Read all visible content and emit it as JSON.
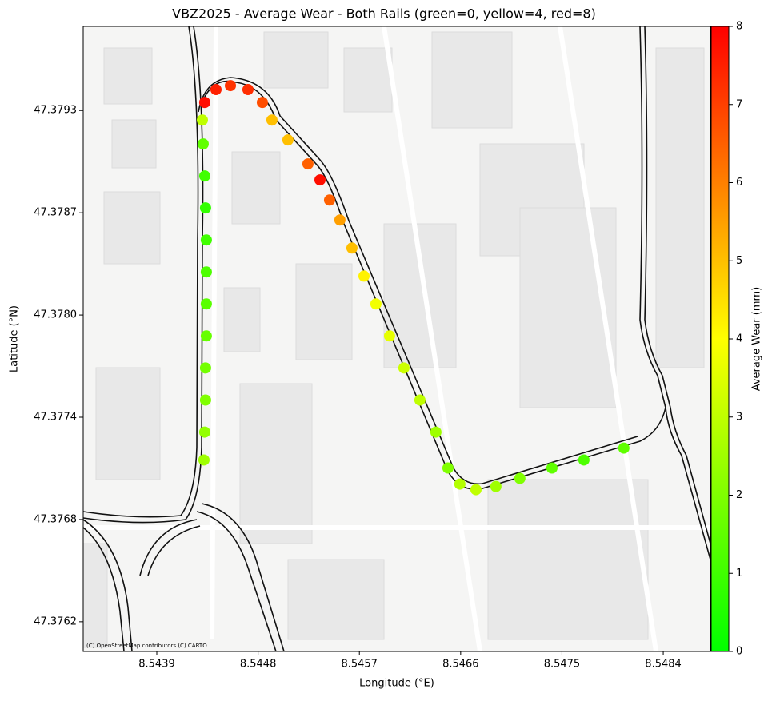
{
  "chart_data": {
    "type": "scatter",
    "title": "VBZ2025 - Average Wear - Both Rails (green=0, yellow=4, red=8)",
    "x_label": "Longitude (°E)",
    "y_label": "Latitude (°N)",
    "attribution": "(C) OpenStreetMap contributors (C) CARTO",
    "xlim": [
      8.543246,
      8.548819
    ],
    "ylim": [
      47.376,
      47.37979
    ],
    "xticks": [
      8.5439,
      8.5448,
      8.5457,
      8.5466,
      8.5475,
      8.5484
    ],
    "yticks": [
      {
        "value": 47.37618,
        "label": "47.3762"
      },
      {
        "value": 47.3768,
        "label": "47.3768"
      },
      {
        "value": 47.37742,
        "label": "47.3774"
      },
      {
        "value": 47.37804,
        "label": "47.3780"
      },
      {
        "value": 47.37866,
        "label": "47.3787"
      },
      {
        "value": 47.37928,
        "label": "47.3793"
      }
    ],
    "x": [
      8.544319,
      8.544326,
      8.544333,
      8.544333,
      8.54434,
      8.54434,
      8.54434,
      8.54434,
      8.544333,
      8.544326,
      8.544312,
      8.544305,
      8.544326,
      8.544426,
      8.544554,
      8.54471,
      8.544838,
      8.544923,
      8.545065,
      8.545243,
      8.54535,
      8.545435,
      8.545527,
      8.545634,
      8.545741,
      8.545847,
      8.545968,
      8.546096,
      8.546238,
      8.54638,
      8.546487,
      8.546593,
      8.546736,
      8.546913,
      8.547126,
      8.547411,
      8.547695,
      8.54805
    ],
    "y": [
      47.377161,
      47.37733,
      47.377524,
      47.377719,
      47.377913,
      47.378107,
      47.378301,
      47.378495,
      47.378689,
      47.378883,
      47.379077,
      47.379222,
      47.379329,
      47.379407,
      47.379431,
      47.379407,
      47.379329,
      47.379222,
      47.379101,
      47.378956,
      47.378859,
      47.378737,
      47.378616,
      47.378446,
      47.378276,
      47.378107,
      47.377913,
      47.377719,
      47.377524,
      47.37733,
      47.377112,
      47.377015,
      47.376981,
      47.377,
      47.377049,
      47.377112,
      47.377161,
      47.377233
    ],
    "color_values": [
      2.5,
      2.3,
      2,
      1.8,
      1.6,
      1.4,
      1.2,
      1,
      0.8,
      1,
      1.5,
      3,
      7.8,
      7.5,
      7.2,
      7.3,
      6.8,
      5,
      5,
      6.5,
      7.8,
      6.5,
      5.5,
      5,
      4.2,
      3.8,
      3.6,
      3.2,
      3,
      2.5,
      2,
      2.8,
      3,
      2.5,
      2,
      1.5,
      1.2,
      1.5
    ],
    "colormap": [
      "#00ff00",
      "#ffff00",
      "#ff0000"
    ],
    "clim": [
      0,
      8
    ],
    "cticks": [
      0,
      1,
      2,
      3,
      4,
      5,
      6,
      7,
      8
    ],
    "colorbar_label": "Average Wear (mm)"
  }
}
